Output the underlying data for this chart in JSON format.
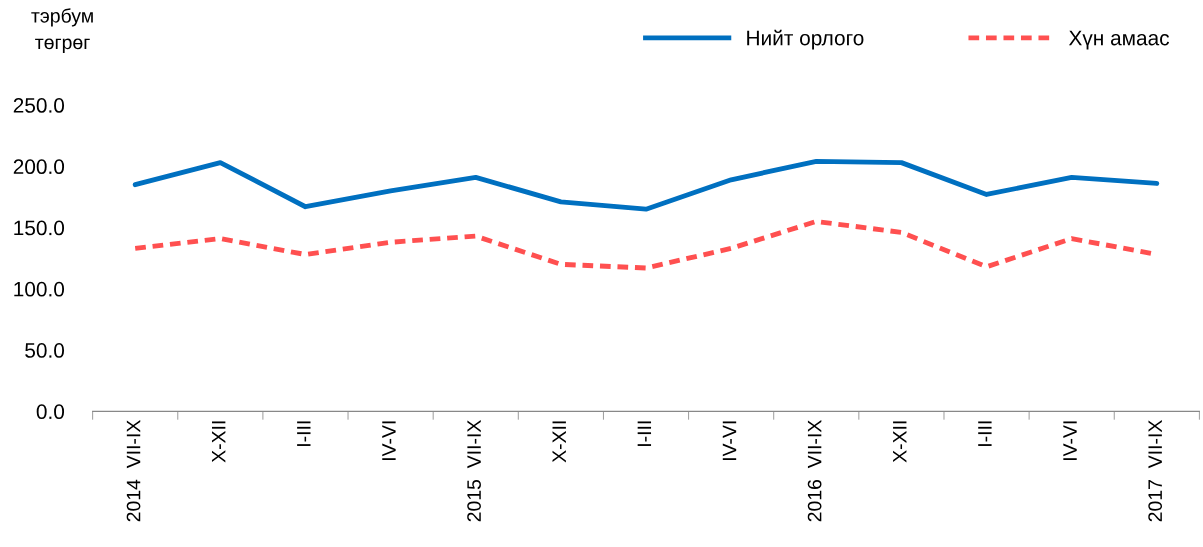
{
  "chart_data": {
    "type": "line",
    "ylabel": "тэрбум\nтөгрөг",
    "categories": [
      "2014  VII-IX",
      "X-XII",
      "I-III",
      "IV-VI",
      "2015  VII-IX",
      "X-XII",
      "I-III",
      "IV-VI",
      "2016  VII-IX",
      "X-XII",
      "I-III",
      "IV-VI",
      "2017  VII-IX"
    ],
    "series": [
      {
        "name": "Нийт орлого",
        "color": "#0070c0",
        "line_style": "solid",
        "values": [
          185,
          203,
          167,
          180,
          191,
          171,
          165,
          189,
          204,
          203,
          177,
          191,
          186
        ]
      },
      {
        "name": "Хүн амаас",
        "color": "#ff5050",
        "line_style": "dashed",
        "values": [
          133,
          141,
          128,
          138,
          143,
          120,
          117,
          133,
          155,
          146,
          118,
          141,
          128
        ]
      }
    ],
    "ylim": [
      0,
      250
    ],
    "yticks": [
      {
        "value": 0,
        "label": "0.0"
      },
      {
        "value": 50,
        "label": "50.0"
      },
      {
        "value": 100,
        "label": "100.0"
      },
      {
        "value": 150,
        "label": "150.0"
      },
      {
        "value": 200,
        "label": "200.0"
      },
      {
        "value": 250,
        "label": "250.0"
      }
    ],
    "grid": false,
    "legend": "top right"
  }
}
